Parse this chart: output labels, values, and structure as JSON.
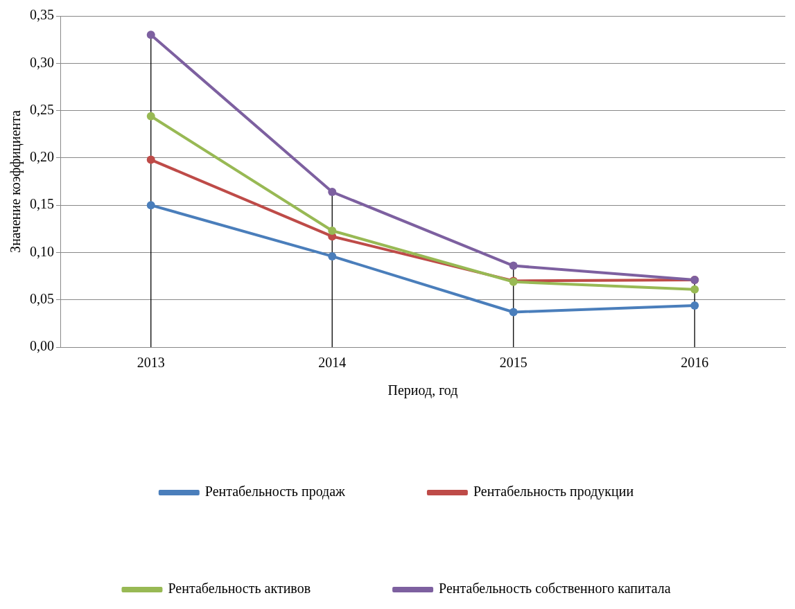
{
  "chart_data": {
    "type": "line",
    "xlabel": "Период, год",
    "ylabel": "Значение коэффициента",
    "categories": [
      "2013",
      "2014",
      "2015",
      "2016"
    ],
    "series": [
      {
        "name": "Рентабельность продаж",
        "color": "#4a7ebb",
        "values": [
          0.15,
          0.096,
          0.037,
          0.044
        ]
      },
      {
        "name": "Рентабельность продукции",
        "color": "#be4b48",
        "values": [
          0.198,
          0.117,
          0.07,
          0.071
        ]
      },
      {
        "name": "Рентабельность активов",
        "color": "#98b954",
        "values": [
          0.244,
          0.123,
          0.069,
          0.061
        ]
      },
      {
        "name": "Рентабельность собственного капитала",
        "color": "#7d60a0",
        "values": [
          0.33,
          0.164,
          0.086,
          0.071
        ],
        "errors": [
          [
            0,
            0.33
          ],
          [
            0,
            0.164
          ],
          [
            0,
            0.086
          ],
          [
            0,
            0.071
          ]
        ]
      }
    ],
    "ylim": [
      0,
      0.35
    ],
    "yticks": [
      {
        "value": 0,
        "label": "0,00"
      },
      {
        "value": 0.05,
        "label": "0,05"
      },
      {
        "value": 0.1,
        "label": "0,10"
      },
      {
        "value": 0.15,
        "label": "0,15"
      },
      {
        "value": 0.2,
        "label": "0,20"
      },
      {
        "value": 0.25,
        "label": "0,25"
      },
      {
        "value": 0.3,
        "label": "0,30"
      },
      {
        "value": 0.35,
        "label": "0,35"
      }
    ],
    "grid": "y",
    "legend": "bottom",
    "marker": "circle",
    "line_style": "solid"
  }
}
